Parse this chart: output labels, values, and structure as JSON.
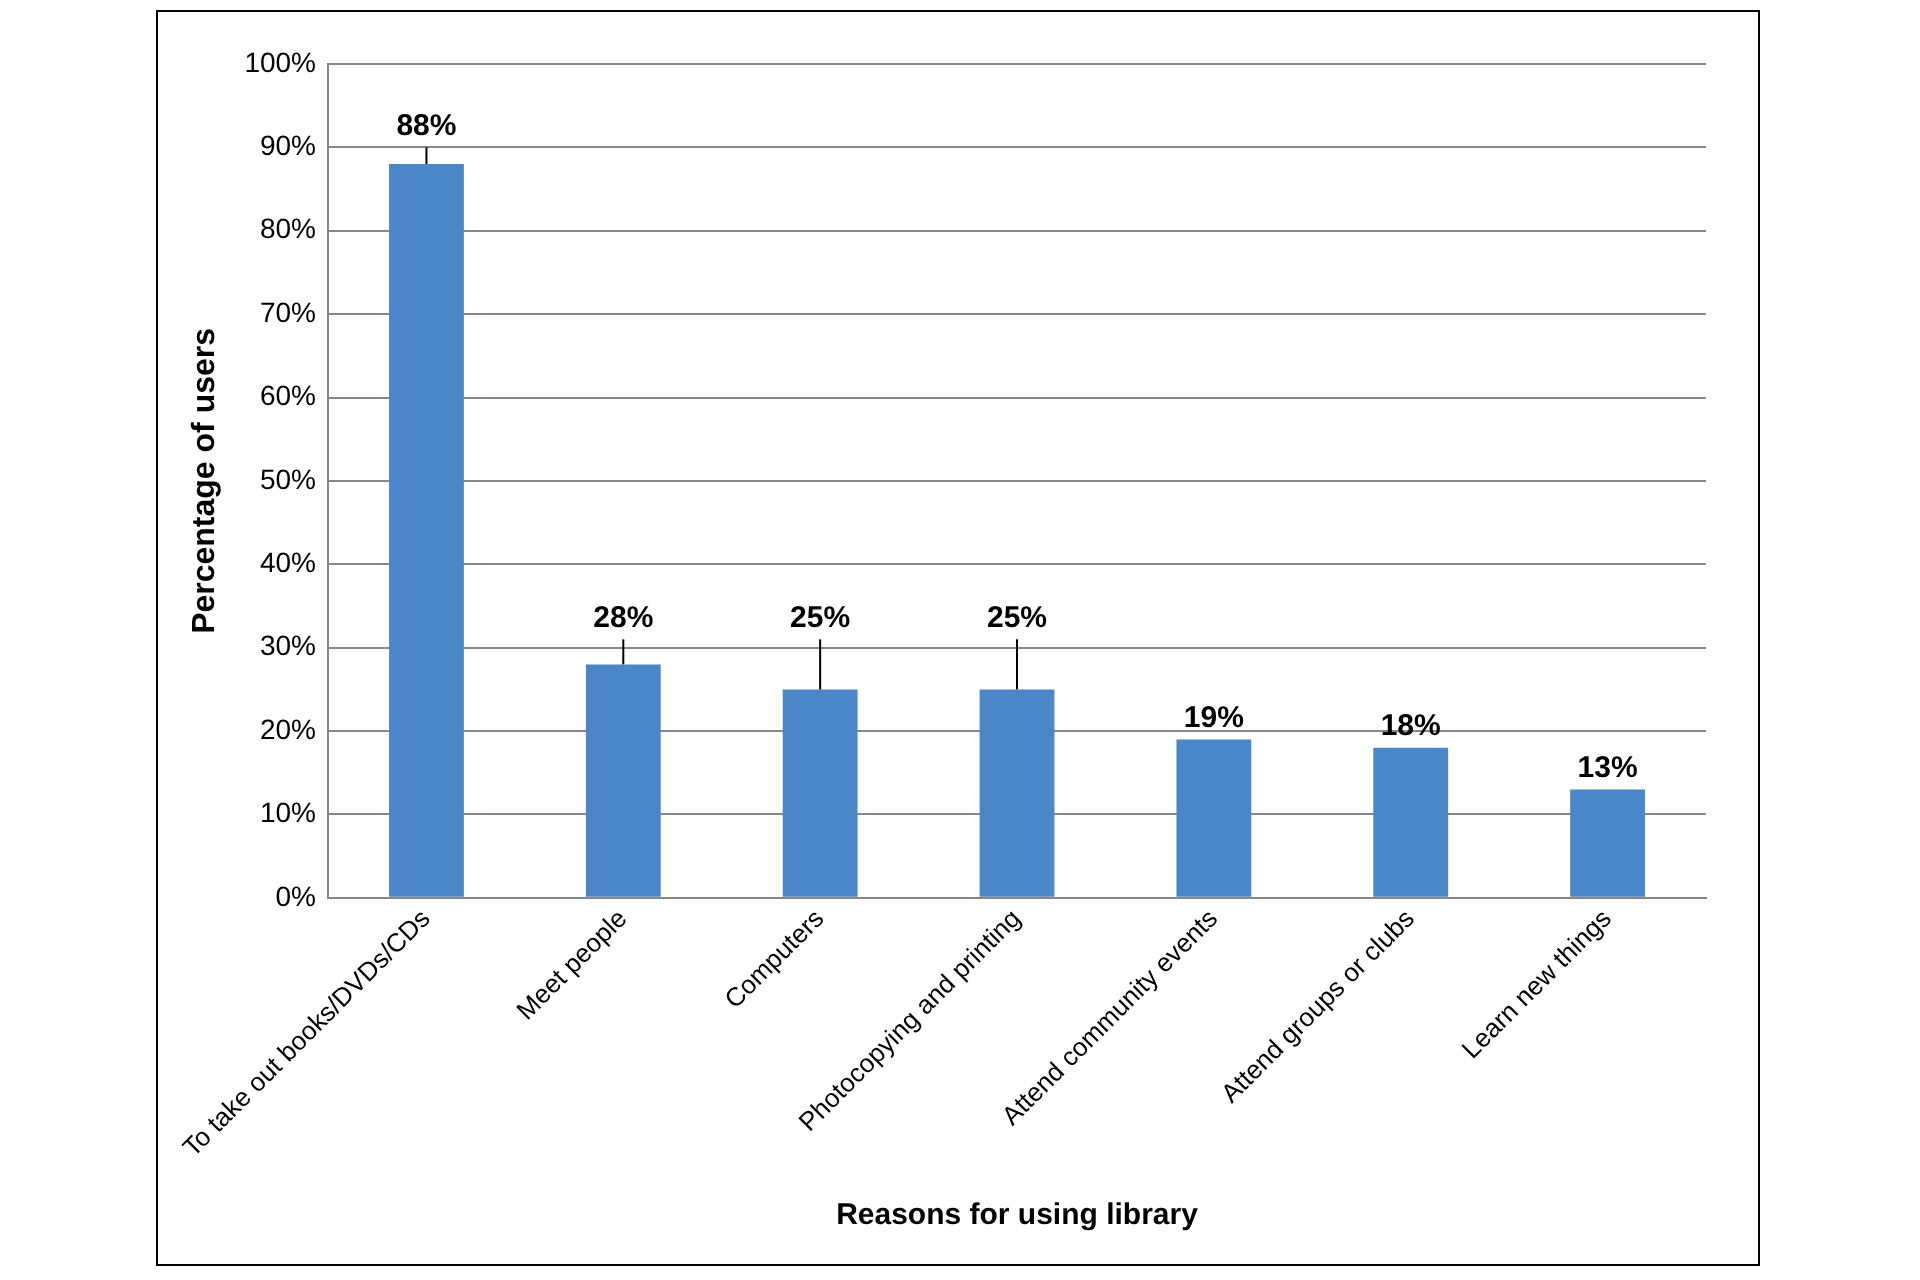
{
  "chart_data": {
    "type": "bar",
    "xlabel": "Reasons for using library",
    "ylabel": "Percentage of users",
    "categories": [
      "To take out books/DVDs/CDs",
      "Meet people",
      "Computers",
      "Photocopying and printing",
      "Attend community events",
      "Attend groups or clubs",
      "Learn new things"
    ],
    "values": [
      88,
      28,
      25,
      25,
      19,
      18,
      13
    ],
    "value_labels": [
      "88%",
      "28%",
      "25%",
      "25%",
      "19%",
      "18%",
      "13%"
    ],
    "errors": [
      [
        88,
        90
      ],
      [
        28,
        31
      ],
      [
        25,
        31
      ],
      [
        25,
        31
      ],
      null,
      null,
      null
    ],
    "color": "#4a86c8",
    "ylim": [
      0,
      100
    ],
    "yticks": [
      {
        "value": 0,
        "label": "0%"
      },
      {
        "value": 10,
        "label": "10%"
      },
      {
        "value": 20,
        "label": "20%"
      },
      {
        "value": 30,
        "label": "30%"
      },
      {
        "value": 40,
        "label": "40%"
      },
      {
        "value": 50,
        "label": "50%"
      },
      {
        "value": 60,
        "label": "60%"
      },
      {
        "value": 70,
        "label": "70%"
      },
      {
        "value": 80,
        "label": "80%"
      },
      {
        "value": 90,
        "label": "90%"
      },
      {
        "value": 100,
        "label": "100%"
      }
    ],
    "grid": "y",
    "legend": false
  }
}
